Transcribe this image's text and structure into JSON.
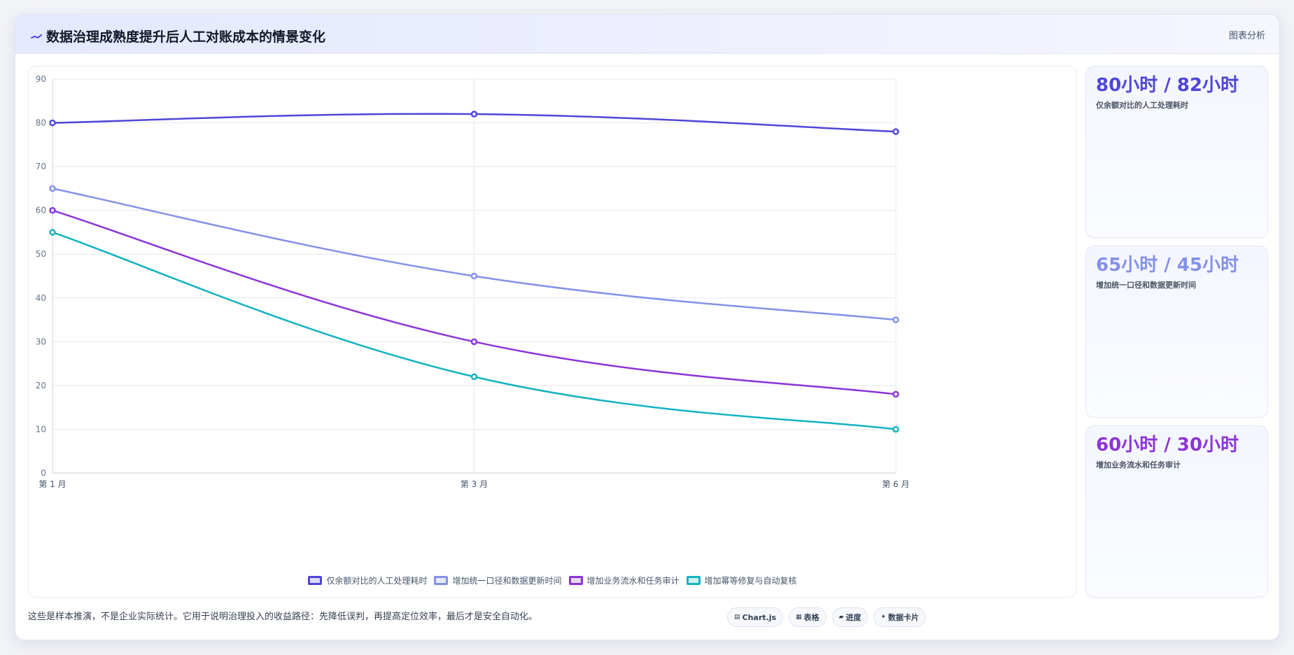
{
  "header": {
    "title": "数据治理成熟度提升后人工对账成本的情景变化",
    "title_icon": "trend-line-icon",
    "action_label": "图表分析"
  },
  "chart_data": {
    "type": "line",
    "categories": [
      "第 1 月",
      "第 3 月",
      "第 6 月"
    ],
    "ylim": [
      0,
      90
    ],
    "yticks": [
      0,
      10,
      20,
      30,
      40,
      50,
      60,
      70,
      80,
      90
    ],
    "grid": true,
    "legend_position": "bottom",
    "series": [
      {
        "name": "仅余额对比的人工处理耗时",
        "values": [
          80,
          82,
          78
        ],
        "color": "#4f46d8"
      },
      {
        "name": "增加统一口径和数据更新时间",
        "values": [
          65,
          45,
          35
        ],
        "color": "#8491e8"
      },
      {
        "name": "增加业务流水和任务审计",
        "values": [
          60,
          30,
          18
        ],
        "color": "#8b35d6"
      },
      {
        "name": "增加幂等修复与自动复核",
        "values": [
          55,
          22,
          10
        ],
        "color": "#14b2c2"
      }
    ]
  },
  "stats": [
    {
      "value": "80小时 / 82小时",
      "label": "仅余额对比的人工处理耗时",
      "color": "#4f46d8"
    },
    {
      "value": "65小时 / 45小时",
      "label": "增加统一口径和数据更新时间",
      "color": "#8491e8"
    },
    {
      "value": "60小时 / 30小时",
      "label": "增加业务流水和任务审计",
      "color": "#8b35d6"
    }
  ],
  "footer": {
    "note": "这些是样本推演，不是企业实际统计。它用于说明治理投入的收益路径：先降低误判，再提高定位效率，最后才是安全自动化。",
    "pills": [
      {
        "icon": "chart-icon",
        "glyph": "▤",
        "label": "Chart.js"
      },
      {
        "icon": "table-icon",
        "glyph": "▦",
        "label": "表格"
      },
      {
        "icon": "progress-icon",
        "glyph": "▰",
        "label": "进度"
      },
      {
        "icon": "sparkle-icon",
        "glyph": "✦",
        "label": "数据卡片"
      }
    ]
  }
}
